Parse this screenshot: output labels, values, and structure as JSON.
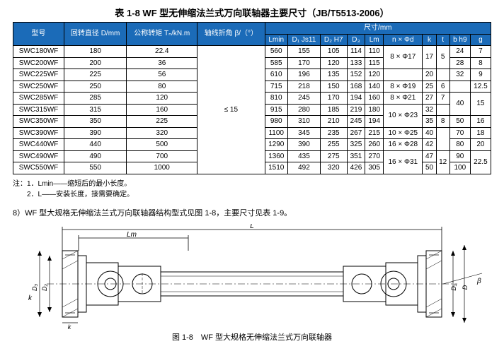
{
  "table": {
    "title": "表 1-8  WF 型无伸缩法兰式万向联轴器主要尺寸（JB/T5513-2006）",
    "head": {
      "model": "型号",
      "D": "回转直径\nD/mm",
      "T": "公称转矩\nTₙ/kN.m",
      "beta": "轴线折角\nβ/（°）",
      "dims_label": "尺寸/mm",
      "Lmin": "Lmin",
      "D1": "D₁\nJs11",
      "D2": "D₂\nH7",
      "D3": "D₃",
      "Lm": "Lm",
      "nphi": "n × Φd",
      "k": "k",
      "t": "t",
      "bh9": "b\nh9",
      "g": "g"
    },
    "beta_value": "≤ 15",
    "rows": [
      {
        "model": "SWC180WF",
        "D": "180",
        "T": "22.4",
        "Lmin": "560",
        "D1": "155",
        "D2": "105",
        "D3": "114",
        "Lm": "110",
        "nphi": "",
        "k": "",
        "t": "",
        "bh9": "24",
        "g": "7"
      },
      {
        "model": "SWC200WF",
        "D": "200",
        "T": "36",
        "Lmin": "585",
        "D1": "170",
        "D2": "120",
        "D3": "133",
        "Lm": "115",
        "nphi": "8 × Φ17",
        "k": "17",
        "t": "5",
        "bh9": "28",
        "g": "8"
      },
      {
        "model": "SWC225WF",
        "D": "225",
        "T": "56",
        "Lmin": "610",
        "D1": "196",
        "D2": "135",
        "D3": "152",
        "Lm": "120",
        "nphi": "",
        "k": "20",
        "t": "",
        "bh9": "32",
        "g": "9"
      },
      {
        "model": "SWC250WF",
        "D": "250",
        "T": "80",
        "Lmin": "715",
        "D1": "218",
        "D2": "150",
        "D3": "168",
        "Lm": "140",
        "nphi": "8 × Φ19",
        "k": "25",
        "t": "6",
        "bh9": "",
        "g": "12.5"
      },
      {
        "model": "SWC285WF",
        "D": "285",
        "T": "120",
        "Lmin": "810",
        "D1": "245",
        "D2": "170",
        "D3": "194",
        "Lm": "160",
        "nphi": "8 × Φ21",
        "k": "27",
        "t": "7",
        "bh9": "40",
        "g": ""
      },
      {
        "model": "SWC315WF",
        "D": "315",
        "T": "160",
        "Lmin": "915",
        "D1": "280",
        "D2": "185",
        "D3": "219",
        "Lm": "180",
        "nphi": "",
        "k": "32",
        "t": "",
        "bh9": "",
        "g": "15"
      },
      {
        "model": "SWC350WF",
        "D": "350",
        "T": "225",
        "Lmin": "980",
        "D1": "310",
        "D2": "210",
        "D3": "245",
        "Lm": "194",
        "nphi": "10 × Φ23",
        "k": "35",
        "t": "8",
        "bh9": "50",
        "g": "16"
      },
      {
        "model": "SWC390WF",
        "D": "390",
        "T": "320",
        "Lmin": "1100",
        "D1": "345",
        "D2": "235",
        "D3": "267",
        "Lm": "215",
        "nphi": "10 × Φ25",
        "k": "40",
        "t": "",
        "bh9": "70",
        "g": "18"
      },
      {
        "model": "SWC440WF",
        "D": "440",
        "T": "500",
        "Lmin": "1290",
        "D1": "390",
        "D2": "255",
        "D3": "325",
        "Lm": "260",
        "nphi": "16 × Φ28",
        "k": "42",
        "t": "10",
        "bh9": "80",
        "g": "20"
      },
      {
        "model": "SWC490WF",
        "D": "490",
        "T": "700",
        "Lmin": "1360",
        "D1": "435",
        "D2": "275",
        "D3": "351",
        "Lm": "270",
        "nphi": "",
        "k": "47",
        "t": "",
        "bh9": "90",
        "g": ""
      },
      {
        "model": "SWC550WF",
        "D": "550",
        "T": "1000",
        "Lmin": "1510",
        "D1": "492",
        "D2": "320",
        "D3": "426",
        "Lm": "305",
        "nphi": "16 × Φ31",
        "k": "50",
        "t": "12",
        "bh9": "100",
        "g": "22.5"
      }
    ],
    "nphi_groups": [
      {
        "start": 0,
        "span": 2,
        "value": "8 × Φ17"
      },
      {
        "start": 3,
        "span": 1,
        "value": "8 × Φ19"
      },
      {
        "start": 4,
        "span": 1,
        "value": "8 × Φ21"
      },
      {
        "start": 5,
        "span": 2,
        "value": "10 × Φ23"
      },
      {
        "start": 7,
        "span": 1,
        "value": "10 × Φ25"
      },
      {
        "start": 8,
        "span": 1,
        "value": "16 × Φ28"
      },
      {
        "start": 9,
        "span": 2,
        "value": "16 × Φ31"
      }
    ],
    "k_groups": [
      {
        "start": 0,
        "span": 2,
        "value": "17"
      }
    ],
    "t_groups": [
      {
        "start": 0,
        "span": 2,
        "value": "5"
      },
      {
        "start": 7,
        "span": 2,
        "value": ""
      },
      {
        "start": 9,
        "span": 2,
        "value": "12"
      }
    ],
    "bh9_groups": [
      {
        "start": 3,
        "span": 1,
        "value": ""
      },
      {
        "start": 4,
        "span": 2,
        "value": "40"
      }
    ],
    "g_groups": [
      {
        "start": 4,
        "span": 2,
        "value": "15"
      },
      {
        "start": 9,
        "span": 2,
        "value": "22.5"
      }
    ]
  },
  "notes": {
    "n1": "注：1．Lmin——缩短后的最小长度。",
    "n2": "　　2．L——安装长度，接需要确定。"
  },
  "section8": "8）WF 型大规格无伸缩法兰式万向联轴器结构型式见图 1-8，主要尺寸见表 1-9。",
  "figure": {
    "caption": "图 1-8　WF 型大规格无伸缩法兰式万向联轴器",
    "labels": {
      "L": "L",
      "Lm": "Lm",
      "D1": "D₁",
      "D2": "D₂",
      "D3": "D₃",
      "k": "k",
      "beta": "β",
      "D": "D"
    },
    "stroke": "#000000",
    "hatch": "#000000"
  }
}
